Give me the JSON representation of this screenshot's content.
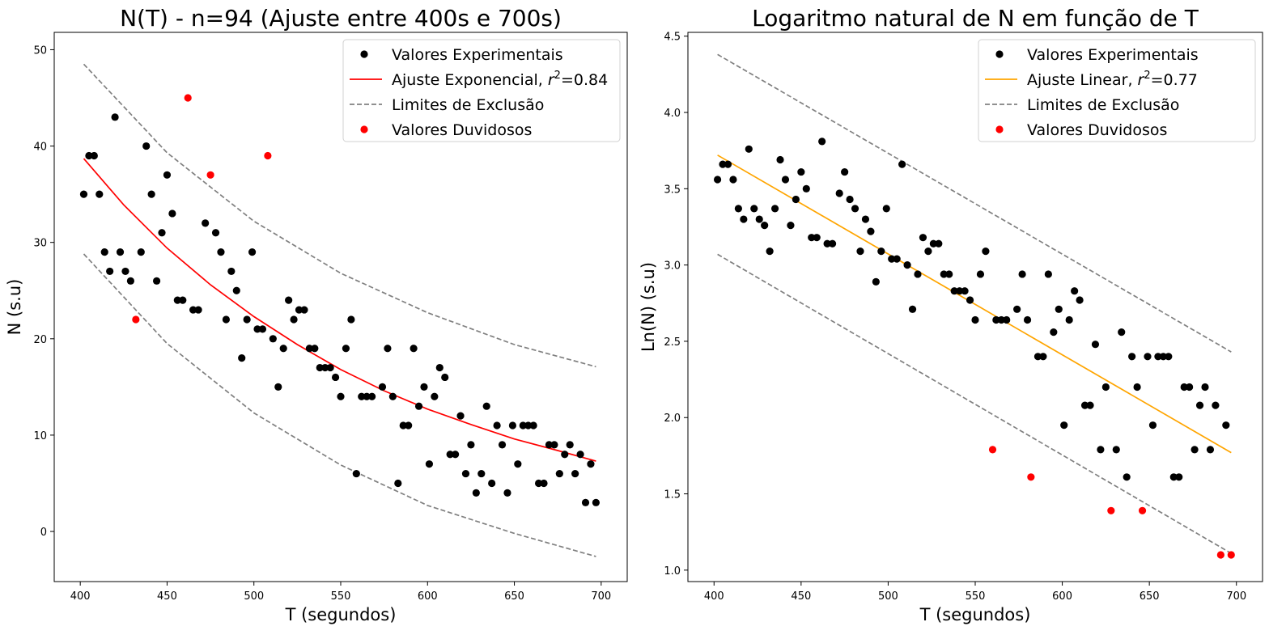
{
  "chart_data": [
    {
      "type": "scatter",
      "title": "N(T) - n=94 (Ajuste entre 400s e 700s)",
      "xlabel": "T (segundos)",
      "ylabel": "N (s.u)",
      "xlim": [
        385,
        715
      ],
      "ylim": [
        -5.2,
        51.8
      ],
      "xticks": [
        400,
        450,
        500,
        550,
        600,
        650,
        700
      ],
      "yticks": [
        0,
        10,
        20,
        30,
        40,
        50
      ],
      "grid": false,
      "legend_position": "top-right",
      "legend": [
        {
          "label": "Valores Experimentais",
          "kind": "dot",
          "color": "#000000"
        },
        {
          "label": "Ajuste Exponencial, ",
          "sup_pre": "r",
          "sup": "2",
          "post": "=0.84",
          "kind": "line",
          "color": "#ff0000"
        },
        {
          "label": "Limites de Exclusão",
          "kind": "dash",
          "color": "#808080"
        },
        {
          "label": "Valores Duvidosos",
          "kind": "dot",
          "color": "#ff0000"
        }
      ],
      "series": [
        {
          "kind": "points",
          "color": "#000000",
          "points": [
            [
              402,
              35
            ],
            [
              405,
              39
            ],
            [
              408,
              39
            ],
            [
              411,
              35
            ],
            [
              414,
              29
            ],
            [
              417,
              27
            ],
            [
              420,
              43
            ],
            [
              423,
              29
            ],
            [
              426,
              27
            ],
            [
              429,
              26
            ],
            [
              435,
              29
            ],
            [
              438,
              40
            ],
            [
              441,
              35
            ],
            [
              444,
              26
            ],
            [
              447,
              31
            ],
            [
              450,
              37
            ],
            [
              453,
              33
            ],
            [
              456,
              24
            ],
            [
              459,
              24
            ],
            [
              465,
              23
            ],
            [
              468,
              23
            ],
            [
              472,
              32
            ],
            [
              478,
              31
            ],
            [
              481,
              29
            ],
            [
              484,
              22
            ],
            [
              487,
              27
            ],
            [
              490,
              25
            ],
            [
              493,
              18
            ],
            [
              496,
              22
            ],
            [
              499,
              29
            ],
            [
              502,
              21
            ],
            [
              505,
              21
            ],
            [
              511,
              20
            ],
            [
              514,
              15
            ],
            [
              517,
              19
            ],
            [
              520,
              24
            ],
            [
              523,
              22
            ],
            [
              526,
              23
            ],
            [
              529,
              23
            ],
            [
              532,
              19
            ],
            [
              535,
              19
            ],
            [
              538,
              17
            ],
            [
              541,
              17
            ],
            [
              544,
              17
            ],
            [
              547,
              16
            ],
            [
              550,
              14
            ],
            [
              553,
              19
            ],
            [
              556,
              22
            ],
            [
              559,
              6
            ],
            [
              562,
              14
            ],
            [
              565,
              14
            ],
            [
              568,
              14
            ],
            [
              574,
              15
            ],
            [
              577,
              19
            ],
            [
              580,
              14
            ],
            [
              583,
              5
            ],
            [
              586,
              11
            ],
            [
              589,
              11
            ],
            [
              592,
              19
            ],
            [
              595,
              13
            ],
            [
              598,
              15
            ],
            [
              601,
              7
            ],
            [
              604,
              14
            ],
            [
              607,
              17
            ],
            [
              610,
              16
            ],
            [
              613,
              8
            ],
            [
              616,
              8
            ],
            [
              619,
              12
            ],
            [
              622,
              6
            ],
            [
              625,
              9
            ],
            [
              628,
              4
            ],
            [
              631,
              6
            ],
            [
              634,
              13
            ],
            [
              637,
              5
            ],
            [
              640,
              11
            ],
            [
              643,
              9
            ],
            [
              646,
              4
            ],
            [
              649,
              11
            ],
            [
              652,
              7
            ],
            [
              655,
              11
            ],
            [
              658,
              11
            ],
            [
              661,
              11
            ],
            [
              664,
              5
            ],
            [
              667,
              5
            ],
            [
              670,
              9
            ],
            [
              673,
              9
            ],
            [
              676,
              6
            ],
            [
              679,
              8
            ],
            [
              682,
              9
            ],
            [
              685,
              6
            ],
            [
              688,
              8
            ],
            [
              691,
              3
            ],
            [
              694,
              7
            ],
            [
              697,
              3
            ]
          ]
        },
        {
          "kind": "points",
          "color": "#ff0000",
          "points": [
            [
              432,
              22
            ],
            [
              462,
              45
            ],
            [
              475,
              37
            ],
            [
              508,
              39
            ]
          ]
        },
        {
          "kind": "line",
          "color": "#ff0000",
          "points": [
            [
              402,
              38.7
            ],
            [
              425,
              33.9
            ],
            [
              450,
              29.4
            ],
            [
              475,
              25.6
            ],
            [
              500,
              22.3
            ],
            [
              525,
              19.4
            ],
            [
              550,
              16.8
            ],
            [
              575,
              14.6
            ],
            [
              600,
              12.7
            ],
            [
              625,
              11.1
            ],
            [
              650,
              9.6
            ],
            [
              675,
              8.4
            ],
            [
              697,
              7.3
            ]
          ]
        },
        {
          "kind": "dash",
          "color": "#808080",
          "points": [
            [
              402,
              48.5
            ],
            [
              450,
              39.3
            ],
            [
              500,
              32.2
            ],
            [
              550,
              26.8
            ],
            [
              600,
              22.7
            ],
            [
              650,
              19.4
            ],
            [
              697,
              17.1
            ]
          ]
        },
        {
          "kind": "dash",
          "color": "#808080",
          "points": [
            [
              402,
              28.8
            ],
            [
              450,
              19.5
            ],
            [
              500,
              12.3
            ],
            [
              550,
              6.9
            ],
            [
              600,
              2.7
            ],
            [
              650,
              -0.2
            ],
            [
              697,
              -2.6
            ]
          ]
        }
      ]
    },
    {
      "type": "scatter",
      "title": "Logaritmo natural de N em função de T",
      "xlabel": "T (segundos)",
      "ylabel": "Ln(N) (s.u)",
      "xlim": [
        385,
        715
      ],
      "ylim": [
        0.925,
        4.525
      ],
      "xticks": [
        400,
        450,
        500,
        550,
        600,
        650,
        700
      ],
      "yticks": [
        1.0,
        1.5,
        2.0,
        2.5,
        3.0,
        3.5,
        4.0,
        4.5
      ],
      "ytick_labels": [
        "1.0",
        "1.5",
        "2.0",
        "2.5",
        "3.0",
        "3.5",
        "4.0",
        "4.5"
      ],
      "grid": false,
      "legend_position": "top-right",
      "legend": [
        {
          "label": "Valores Experimentais",
          "kind": "dot",
          "color": "#000000"
        },
        {
          "label": "Ajuste Linear, ",
          "sup_pre": "r",
          "sup": "2",
          "post": "=0.77",
          "kind": "line",
          "color": "#ffa500"
        },
        {
          "label": "Limites de Exclusão",
          "kind": "dash",
          "color": "#808080"
        },
        {
          "label": "Valores Duvidosos",
          "kind": "dot",
          "color": "#ff0000"
        }
      ],
      "series": [
        {
          "kind": "points",
          "color": "#000000",
          "points": [
            [
              402,
              3.56
            ],
            [
              405,
              3.66
            ],
            [
              408,
              3.66
            ],
            [
              411,
              3.56
            ],
            [
              414,
              3.37
            ],
            [
              417,
              3.3
            ],
            [
              420,
              3.76
            ],
            [
              423,
              3.37
            ],
            [
              426,
              3.3
            ],
            [
              429,
              3.26
            ],
            [
              432,
              3.09
            ],
            [
              435,
              3.37
            ],
            [
              438,
              3.69
            ],
            [
              441,
              3.56
            ],
            [
              444,
              3.26
            ],
            [
              447,
              3.43
            ],
            [
              450,
              3.61
            ],
            [
              453,
              3.5
            ],
            [
              456,
              3.18
            ],
            [
              459,
              3.18
            ],
            [
              462,
              3.81
            ],
            [
              465,
              3.14
            ],
            [
              468,
              3.14
            ],
            [
              472,
              3.47
            ],
            [
              475,
              3.61
            ],
            [
              478,
              3.43
            ],
            [
              481,
              3.37
            ],
            [
              484,
              3.09
            ],
            [
              487,
              3.3
            ],
            [
              490,
              3.22
            ],
            [
              493,
              2.89
            ],
            [
              496,
              3.09
            ],
            [
              499,
              3.37
            ],
            [
              502,
              3.04
            ],
            [
              505,
              3.04
            ],
            [
              508,
              3.66
            ],
            [
              511,
              3.0
            ],
            [
              514,
              2.71
            ],
            [
              517,
              2.94
            ],
            [
              520,
              3.18
            ],
            [
              523,
              3.09
            ],
            [
              526,
              3.14
            ],
            [
              529,
              3.14
            ],
            [
              532,
              2.94
            ],
            [
              535,
              2.94
            ],
            [
              538,
              2.83
            ],
            [
              541,
              2.83
            ],
            [
              544,
              2.83
            ],
            [
              547,
              2.77
            ],
            [
              550,
              2.64
            ],
            [
              553,
              2.94
            ],
            [
              556,
              3.09
            ],
            [
              562,
              2.64
            ],
            [
              565,
              2.64
            ],
            [
              568,
              2.64
            ],
            [
              574,
              2.71
            ],
            [
              577,
              2.94
            ],
            [
              580,
              2.64
            ],
            [
              586,
              2.4
            ],
            [
              589,
              2.4
            ],
            [
              592,
              2.94
            ],
            [
              595,
              2.56
            ],
            [
              598,
              2.71
            ],
            [
              601,
              1.95
            ],
            [
              604,
              2.64
            ],
            [
              607,
              2.83
            ],
            [
              610,
              2.77
            ],
            [
              613,
              2.08
            ],
            [
              616,
              2.08
            ],
            [
              619,
              2.48
            ],
            [
              622,
              1.79
            ],
            [
              625,
              2.2
            ],
            [
              631,
              1.79
            ],
            [
              634,
              2.56
            ],
            [
              637,
              1.61
            ],
            [
              640,
              2.4
            ],
            [
              643,
              2.2
            ],
            [
              649,
              2.4
            ],
            [
              652,
              1.95
            ],
            [
              655,
              2.4
            ],
            [
              658,
              2.4
            ],
            [
              661,
              2.4
            ],
            [
              664,
              1.61
            ],
            [
              667,
              1.61
            ],
            [
              670,
              2.2
            ],
            [
              673,
              2.2
            ],
            [
              676,
              1.79
            ],
            [
              679,
              2.08
            ],
            [
              682,
              2.2
            ],
            [
              685,
              1.79
            ],
            [
              688,
              2.08
            ],
            [
              694,
              1.95
            ]
          ]
        },
        {
          "kind": "points",
          "color": "#ff0000",
          "points": [
            [
              560,
              1.79
            ],
            [
              582,
              1.61
            ],
            [
              628,
              1.39
            ],
            [
              646,
              1.39
            ],
            [
              691,
              1.1
            ],
            [
              697,
              1.1
            ]
          ]
        },
        {
          "kind": "line",
          "color": "#ffa500",
          "points": [
            [
              402,
              3.72
            ],
            [
              697,
              1.77
            ]
          ]
        },
        {
          "kind": "dash",
          "color": "#808080",
          "points": [
            [
              402,
              4.38
            ],
            [
              697,
              2.43
            ]
          ]
        },
        {
          "kind": "dash",
          "color": "#808080",
          "points": [
            [
              402,
              3.07
            ],
            [
              697,
              1.11
            ]
          ]
        }
      ]
    }
  ]
}
